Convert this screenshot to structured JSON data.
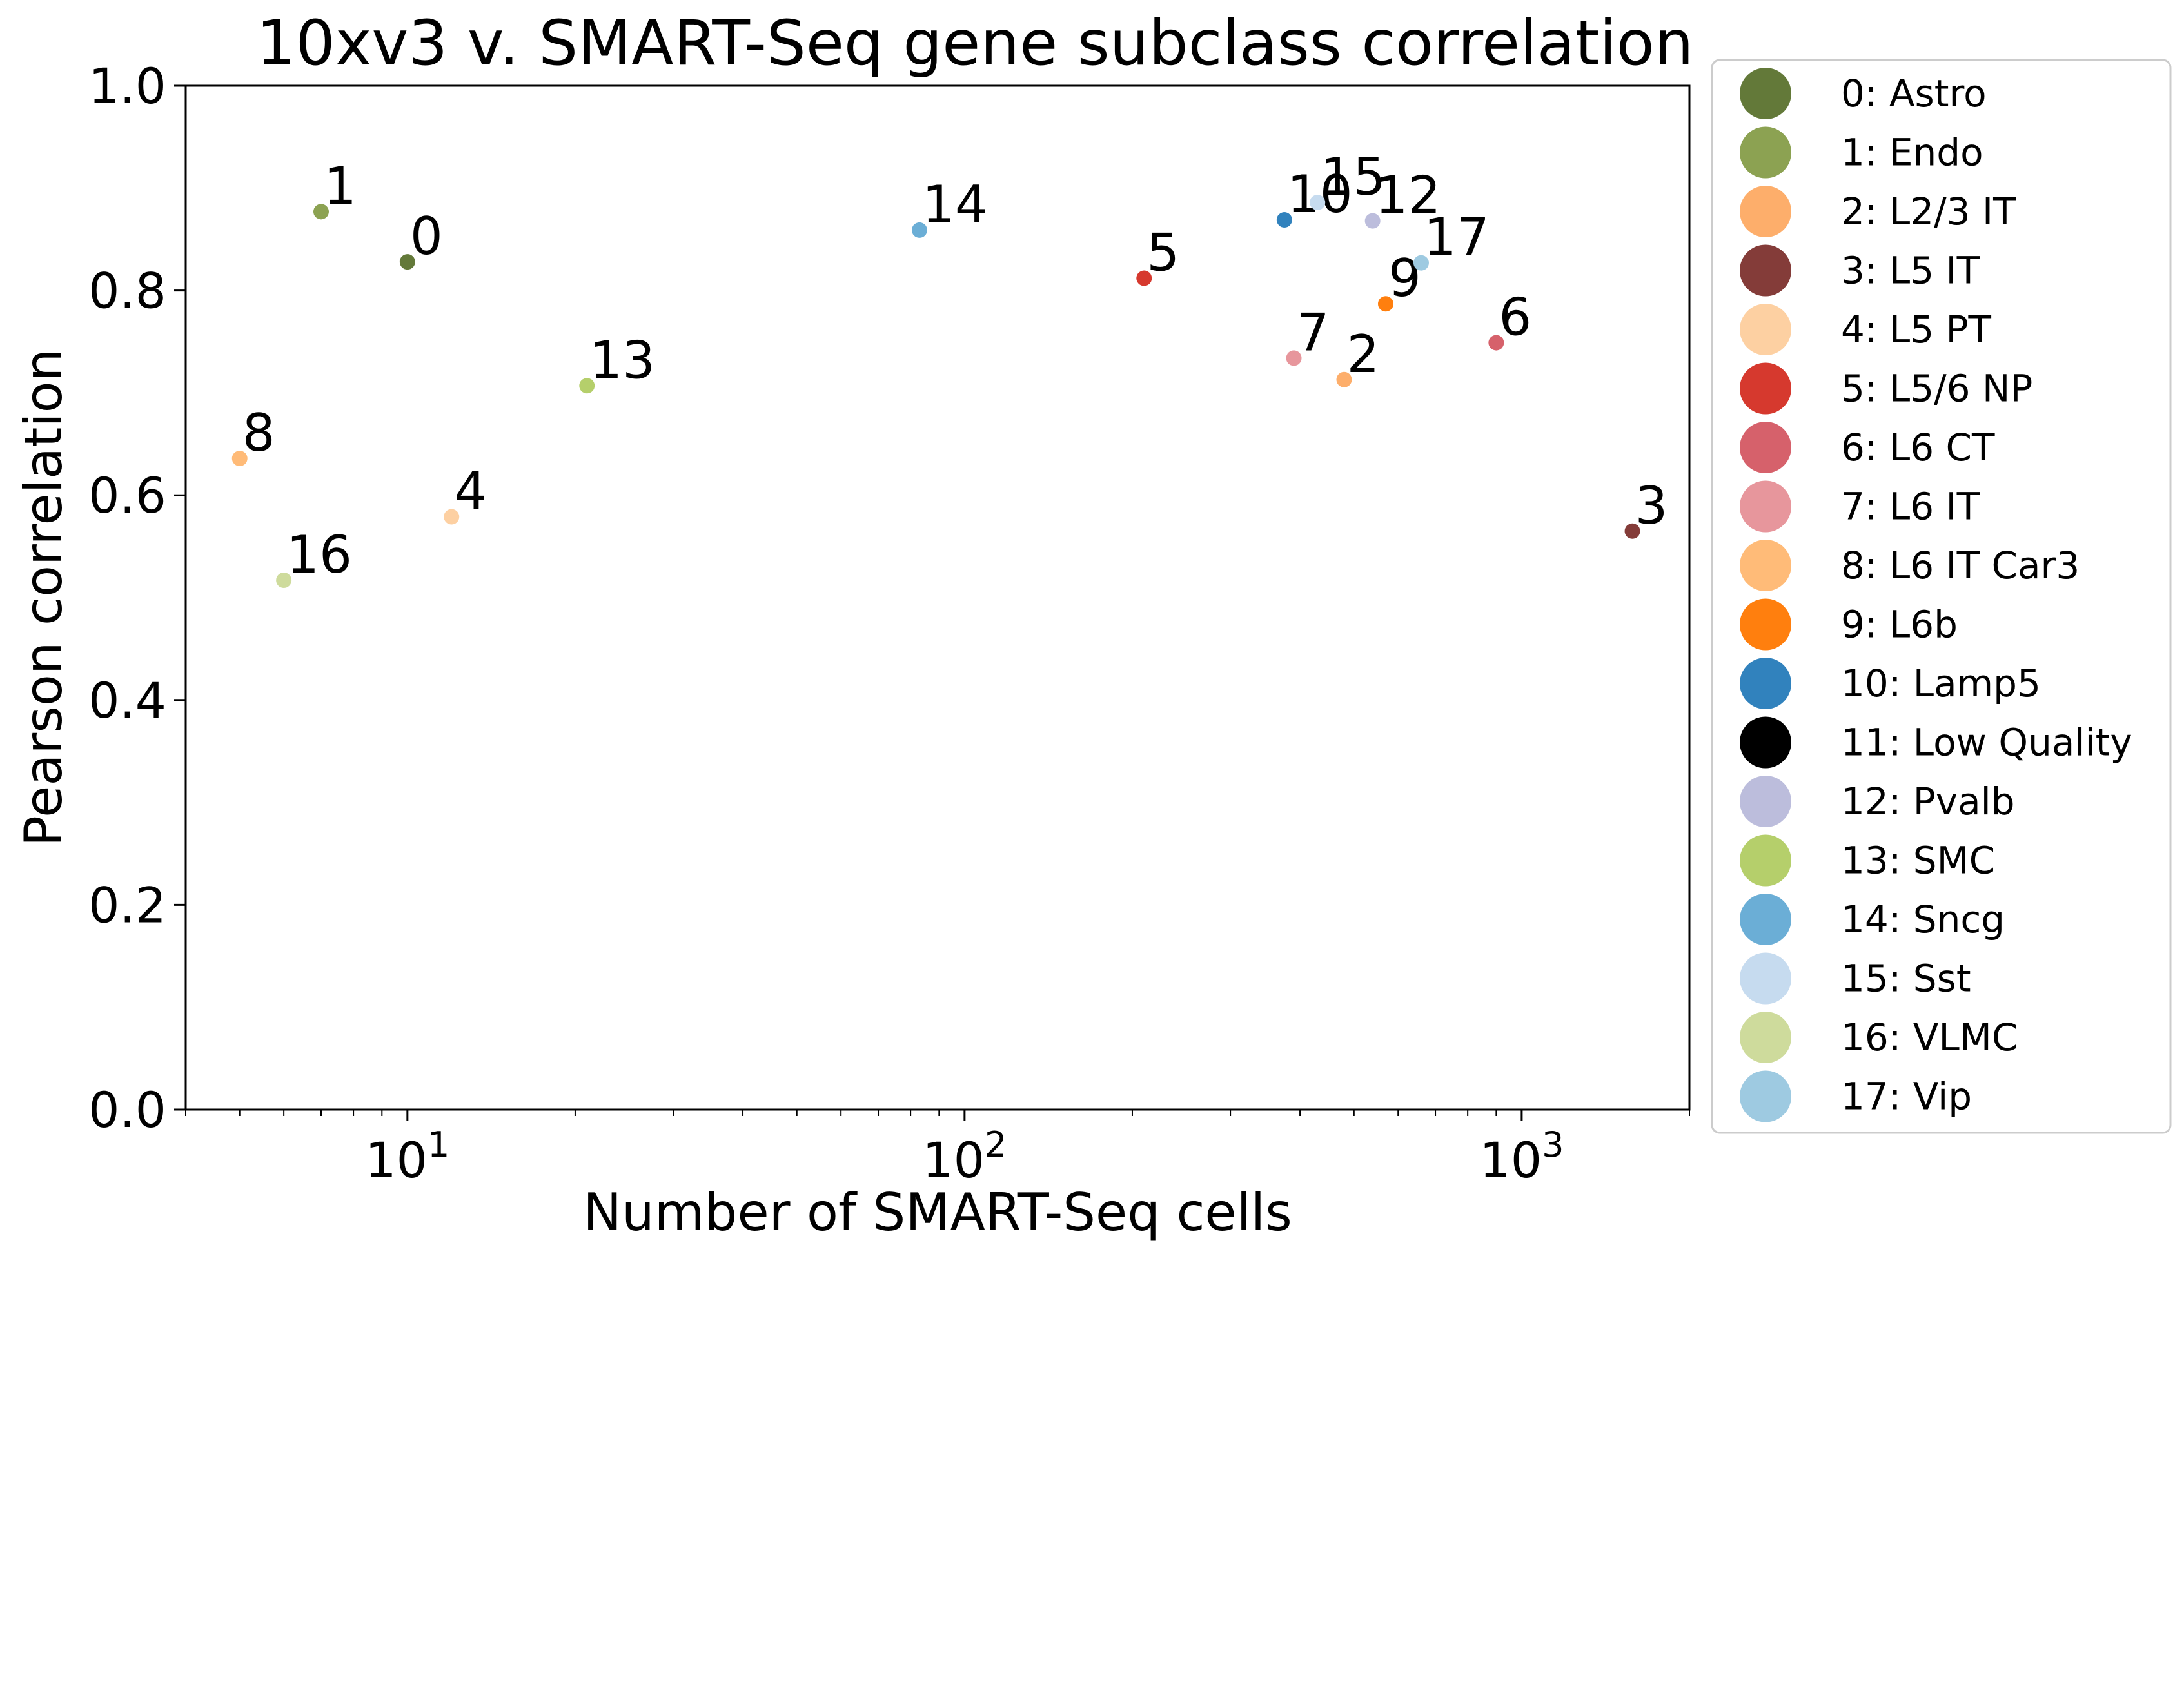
{
  "chart_data": {
    "type": "scatter",
    "title": "10xv3 v. SMART-Seq gene subclass correlation",
    "xlabel": "Number of SMART-Seq cells",
    "ylabel": "Pearson correlation",
    "xscale": "log",
    "xlim": [
      4,
      2000
    ],
    "ylim": [
      0.0,
      1.0
    ],
    "x_ticks": [
      {
        "value": 10,
        "label": "10^1"
      },
      {
        "value": 100,
        "label": "10^2"
      },
      {
        "value": 1000,
        "label": "10^3"
      }
    ],
    "y_ticks": [
      {
        "value": 0.0,
        "label": "0.0"
      },
      {
        "value": 0.2,
        "label": "0.2"
      },
      {
        "value": 0.4,
        "label": "0.4"
      },
      {
        "value": 0.6,
        "label": "0.6"
      },
      {
        "value": 0.8,
        "label": "0.8"
      },
      {
        "value": 1.0,
        "label": "1.0"
      }
    ],
    "grid": false,
    "legend_position": "outside-right",
    "points": [
      {
        "id": "0",
        "label": "0",
        "name": "0: Astro",
        "x": 10,
        "y": 0.828,
        "color": "#637939"
      },
      {
        "id": "1",
        "label": "1",
        "name": "1: Endo",
        "x": 7,
        "y": 0.877,
        "color": "#8ca252"
      },
      {
        "id": "2",
        "label": "2",
        "name": "2: L2/3 IT",
        "x": 480,
        "y": 0.713,
        "color": "#fdae6b"
      },
      {
        "id": "3",
        "label": "3",
        "name": "3: L5 IT",
        "x": 1580,
        "y": 0.565,
        "color": "#843c39"
      },
      {
        "id": "4",
        "label": "4",
        "name": "4: L5 PT",
        "x": 12,
        "y": 0.579,
        "color": "#fdd0a2"
      },
      {
        "id": "5",
        "label": "5",
        "name": "5: L5/6 NP",
        "x": 210,
        "y": 0.812,
        "color": "#d6392e"
      },
      {
        "id": "6",
        "label": "6",
        "name": "6: L6 CT",
        "x": 900,
        "y": 0.749,
        "color": "#d6616b"
      },
      {
        "id": "7",
        "label": "7",
        "name": "7: L6 IT",
        "x": 390,
        "y": 0.734,
        "color": "#e7969c"
      },
      {
        "id": "8",
        "label": "8",
        "name": "8: L6 IT Car3",
        "x": 5,
        "y": 0.636,
        "color": "#ffbb78"
      },
      {
        "id": "9",
        "label": "9",
        "name": "9: L6b",
        "x": 570,
        "y": 0.787,
        "color": "#ff7f0e"
      },
      {
        "id": "10",
        "label": "10",
        "name": "10: Lamp5",
        "x": 375,
        "y": 0.869,
        "color": "#3182bd"
      },
      {
        "id": "12",
        "label": "12",
        "name": "12: Pvalb",
        "x": 540,
        "y": 0.868,
        "color": "#bcbddc"
      },
      {
        "id": "13",
        "label": "13",
        "name": "13: SMC",
        "x": 21,
        "y": 0.707,
        "color": "#b5cf6b"
      },
      {
        "id": "14",
        "label": "14",
        "name": "14: Sncg",
        "x": 83,
        "y": 0.859,
        "color": "#6baed6"
      },
      {
        "id": "15",
        "label": "15",
        "name": "15: Sst",
        "x": 430,
        "y": 0.886,
        "color": "#c6dbef"
      },
      {
        "id": "16",
        "label": "16",
        "name": "16: VLMC",
        "x": 6,
        "y": 0.517,
        "color": "#cedb9c"
      },
      {
        "id": "17",
        "label": "17",
        "name": "17: Vip",
        "x": 660,
        "y": 0.827,
        "color": "#9ecae1"
      }
    ],
    "legend": [
      {
        "label": "0: Astro",
        "color": "#637939"
      },
      {
        "label": "1: Endo",
        "color": "#8ca252"
      },
      {
        "label": "2: L2/3 IT",
        "color": "#fdae6b"
      },
      {
        "label": "3: L5 IT",
        "color": "#843c39"
      },
      {
        "label": "4: L5 PT",
        "color": "#fdd0a2"
      },
      {
        "label": "5: L5/6 NP",
        "color": "#d6392e"
      },
      {
        "label": "6: L6 CT",
        "color": "#d6616b"
      },
      {
        "label": "7: L6 IT",
        "color": "#e7969c"
      },
      {
        "label": "8: L6 IT Car3",
        "color": "#ffbb78"
      },
      {
        "label": "9: L6b",
        "color": "#ff7f0e"
      },
      {
        "label": "10: Lamp5",
        "color": "#3182bd"
      },
      {
        "label": "11: Low Quality",
        "color": "#000000"
      },
      {
        "label": "12: Pvalb",
        "color": "#bcbddc"
      },
      {
        "label": "13: SMC",
        "color": "#b5cf6b"
      },
      {
        "label": "14: Sncg",
        "color": "#6baed6"
      },
      {
        "label": "15: Sst",
        "color": "#c6dbef"
      },
      {
        "label": "16: VLMC",
        "color": "#cedb9c"
      },
      {
        "label": "17: Vip",
        "color": "#9ecae1"
      }
    ]
  }
}
